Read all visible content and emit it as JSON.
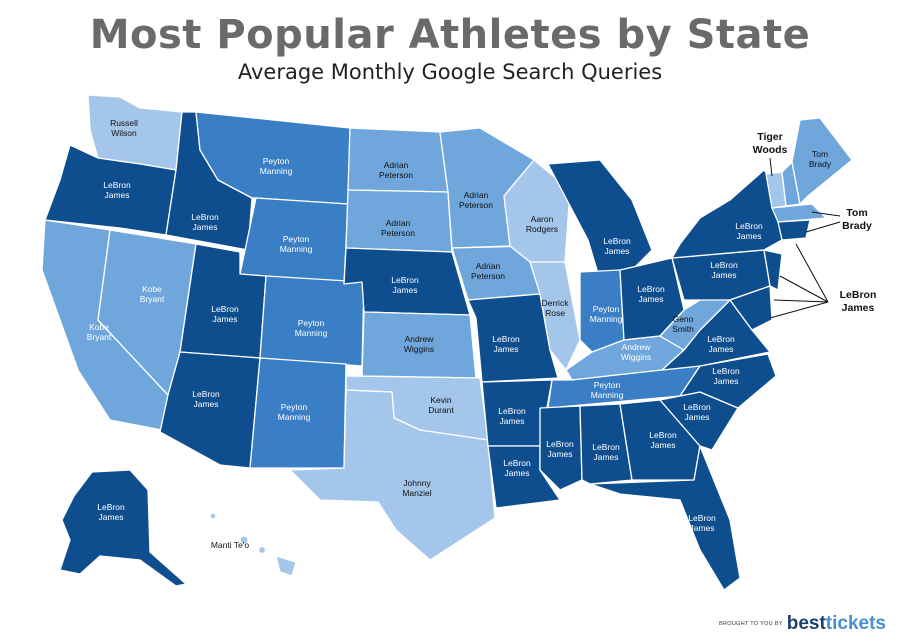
{
  "title": "Most Popular Athletes by State",
  "subtitle": "Average Monthly Google Search Queries",
  "colors": {
    "dark": "#0e4e8e",
    "medium": "#3a7ec5",
    "light": "#6fa6dc",
    "lightest": "#a3c6ea"
  },
  "states": [
    {
      "code": "WA",
      "athlete": "Russell Wilson"
    },
    {
      "code": "OR",
      "athlete": "LeBron James"
    },
    {
      "code": "CA",
      "athlete": "Kobe Bryant"
    },
    {
      "code": "NV",
      "athlete": "Kobe Bryant"
    },
    {
      "code": "ID",
      "athlete": "LeBron James"
    },
    {
      "code": "MT",
      "athlete": "Peyton Manning"
    },
    {
      "code": "WY",
      "athlete": "Peyton Manning"
    },
    {
      "code": "UT",
      "athlete": "LeBron James"
    },
    {
      "code": "AZ",
      "athlete": "LeBron James"
    },
    {
      "code": "CO",
      "athlete": "Peyton Manning"
    },
    {
      "code": "NM",
      "athlete": "Peyton Manning"
    },
    {
      "code": "ND",
      "athlete": "Adrian Peterson"
    },
    {
      "code": "SD",
      "athlete": "Adrian Peterson"
    },
    {
      "code": "NE",
      "athlete": "LeBron James"
    },
    {
      "code": "KS",
      "athlete": "Andrew Wiggins"
    },
    {
      "code": "OK",
      "athlete": "Kevin Durant"
    },
    {
      "code": "TX",
      "athlete": "Johnny Manziel"
    },
    {
      "code": "MN",
      "athlete": "Adrian Peterson"
    },
    {
      "code": "IA",
      "athlete": "Adrian Peterson"
    },
    {
      "code": "MO",
      "athlete": "LeBron James"
    },
    {
      "code": "AR",
      "athlete": "LeBron James"
    },
    {
      "code": "LA",
      "athlete": "LeBron James"
    },
    {
      "code": "WI",
      "athlete": "Aaron Rodgers"
    },
    {
      "code": "IL",
      "athlete": "Derrick Rose"
    },
    {
      "code": "MI",
      "athlete": "LeBron James"
    },
    {
      "code": "IN",
      "athlete": "Peyton Manning"
    },
    {
      "code": "OH",
      "athlete": "LeBron James"
    },
    {
      "code": "KY",
      "athlete": "Andrew Wiggins"
    },
    {
      "code": "TN",
      "athlete": "Peyton Manning"
    },
    {
      "code": "MS",
      "athlete": "LeBron James"
    },
    {
      "code": "AL",
      "athlete": "LeBron James"
    },
    {
      "code": "GA",
      "athlete": "LeBron James"
    },
    {
      "code": "FL",
      "athlete": "LeBron James"
    },
    {
      "code": "SC",
      "athlete": "LeBron James"
    },
    {
      "code": "NC",
      "athlete": "LeBron James"
    },
    {
      "code": "VA",
      "athlete": "LeBron James"
    },
    {
      "code": "WV",
      "athlete": "Geno Smith"
    },
    {
      "code": "PA",
      "athlete": "LeBron James"
    },
    {
      "code": "NY",
      "athlete": "LeBron James"
    },
    {
      "code": "ME",
      "athlete": "Tom Brady"
    },
    {
      "code": "AK",
      "athlete": "LeBron James"
    },
    {
      "code": "HI",
      "athlete": "Manti Te'o"
    }
  ],
  "callouts": {
    "vt": "Tiger Woods",
    "ma": "Tom Brady",
    "ne": "LeBron James"
  },
  "brand": {
    "by": "BROUGHT TO YOU BY",
    "name_a": "best",
    "name_b": "tickets"
  }
}
